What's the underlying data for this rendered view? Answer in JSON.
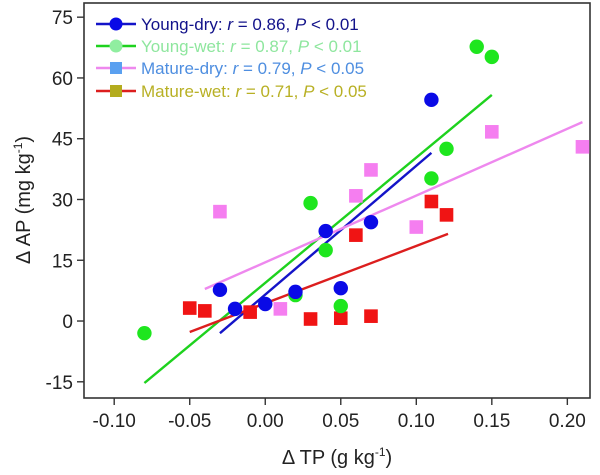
{
  "chart_data": {
    "type": "scatter",
    "title": "",
    "xlabel": "Δ TP (g kg",
    "xlabel_sup": "-1",
    "xlabel_end": ")",
    "ylabel": "Δ AP (mg kg",
    "ylabel_sup": "-1",
    "ylabel_end": ")",
    "xlim": [
      -0.12,
      0.215
    ],
    "ylim": [
      -19,
      78.5
    ],
    "xticks": [
      -0.1,
      -0.05,
      0.0,
      0.05,
      0.1,
      0.15,
      0.2
    ],
    "xtick_labels": [
      "-0.10",
      "-0.05",
      "0.00",
      "0.05",
      "0.10",
      "0.15",
      "0.20"
    ],
    "yticks": [
      -15,
      0,
      15,
      30,
      45,
      60,
      75
    ],
    "ytick_labels": [
      "-15",
      "0",
      "15",
      "30",
      "45",
      "60",
      "75"
    ],
    "grid": false,
    "legend_position": "top-left",
    "series": [
      {
        "name": "Young-dry",
        "stats_r": "0.86",
        "stats_p": "0.01",
        "marker": "circle",
        "marker_color": "#0a0ae6",
        "legend_marker_color": "#0a0ae6",
        "line_color": "#1414c8",
        "legend_text_color": "#12128a",
        "points": [
          {
            "x": -0.03,
            "y": 7.7
          },
          {
            "x": -0.02,
            "y": 3.0
          },
          {
            "x": 0.0,
            "y": 4.2
          },
          {
            "x": 0.02,
            "y": 7.2
          },
          {
            "x": 0.04,
            "y": 22.2
          },
          {
            "x": 0.05,
            "y": 8.1
          },
          {
            "x": 0.07,
            "y": 24.4
          },
          {
            "x": 0.11,
            "y": 54.6
          }
        ],
        "fit": [
          {
            "x": -0.03,
            "y": -3.0
          },
          {
            "x": 0.11,
            "y": 41.5
          }
        ]
      },
      {
        "name": "Young-wet",
        "stats_r": "0.87",
        "stats_p": "0.01",
        "marker": "circle",
        "marker_color": "#1ee61e",
        "legend_marker_color": "#90eea0",
        "line_color": "#1ed21e",
        "legend_text_color": "#8ee69e",
        "points": [
          {
            "x": -0.08,
            "y": -3.0
          },
          {
            "x": 0.02,
            "y": 6.4
          },
          {
            "x": 0.03,
            "y": 29.1
          },
          {
            "x": 0.04,
            "y": 17.5
          },
          {
            "x": 0.05,
            "y": 3.7
          },
          {
            "x": 0.11,
            "y": 35.2
          },
          {
            "x": 0.12,
            "y": 42.5
          },
          {
            "x": 0.14,
            "y": 67.7
          },
          {
            "x": 0.15,
            "y": 65.2
          }
        ],
        "fit": [
          {
            "x": -0.08,
            "y": -15.3
          },
          {
            "x": 0.15,
            "y": 55.8
          }
        ]
      },
      {
        "name": "Mature-dry",
        "stats_r": "0.79",
        "stats_p": "0.05",
        "marker": "square",
        "marker_color": "#f57ef0",
        "legend_marker_color": "#5aa0f0",
        "line_color": "#ee88ee",
        "legend_text_color": "#4e8ee0",
        "points": [
          {
            "x": -0.03,
            "y": 27.0
          },
          {
            "x": 0.01,
            "y": 3.0
          },
          {
            "x": 0.06,
            "y": 30.9
          },
          {
            "x": 0.07,
            "y": 37.3
          },
          {
            "x": 0.1,
            "y": 23.2
          },
          {
            "x": 0.15,
            "y": 46.7
          },
          {
            "x": 0.21,
            "y": 43.0
          }
        ],
        "fit": [
          {
            "x": -0.04,
            "y": 7.9
          },
          {
            "x": 0.21,
            "y": 49.1
          }
        ]
      },
      {
        "name": "Mature-wet",
        "stats_r": "0.71",
        "stats_p": "0.05",
        "marker": "square",
        "marker_color": "#f01414",
        "legend_marker_color": "#b4ac1e",
        "line_color": "#dc1e1e",
        "legend_text_color": "#b8b024",
        "points": [
          {
            "x": -0.05,
            "y": 3.2
          },
          {
            "x": -0.04,
            "y": 2.5
          },
          {
            "x": -0.01,
            "y": 2.2
          },
          {
            "x": 0.03,
            "y": 0.5
          },
          {
            "x": 0.05,
            "y": 0.7
          },
          {
            "x": 0.06,
            "y": 21.2
          },
          {
            "x": 0.07,
            "y": 1.2
          },
          {
            "x": 0.11,
            "y": 29.5
          },
          {
            "x": 0.12,
            "y": 26.2
          }
        ],
        "fit": [
          {
            "x": -0.05,
            "y": -2.7
          },
          {
            "x": 0.121,
            "y": 21.5
          }
        ]
      }
    ]
  },
  "legend": {
    "r_symbol": "r",
    "equals": " = ",
    "p_symbol": "P",
    "less_than": " < ",
    "separator": ", "
  }
}
